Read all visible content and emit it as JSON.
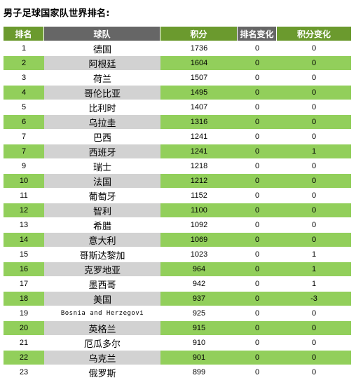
{
  "title": "男子足球国家队世界排名:",
  "columns": [
    "排名",
    "球队",
    "积分",
    "排名变化",
    "积分变化"
  ],
  "rows": [
    {
      "rank": "1",
      "team": "德国",
      "points": "1736",
      "rank_change": "0",
      "points_change": "0"
    },
    {
      "rank": "2",
      "team": "阿根廷",
      "points": "1604",
      "rank_change": "0",
      "points_change": "0"
    },
    {
      "rank": "3",
      "team": "荷兰",
      "points": "1507",
      "rank_change": "0",
      "points_change": "0"
    },
    {
      "rank": "4",
      "team": "哥伦比亚",
      "points": "1495",
      "rank_change": "0",
      "points_change": "0"
    },
    {
      "rank": "5",
      "team": "比利时",
      "points": "1407",
      "rank_change": "0",
      "points_change": "0"
    },
    {
      "rank": "6",
      "team": "乌拉圭",
      "points": "1316",
      "rank_change": "0",
      "points_change": "0"
    },
    {
      "rank": "7",
      "team": "巴西",
      "points": "1241",
      "rank_change": "0",
      "points_change": "0"
    },
    {
      "rank": "7",
      "team": "西班牙",
      "points": "1241",
      "rank_change": "0",
      "points_change": "1"
    },
    {
      "rank": "9",
      "team": "瑞士",
      "points": "1218",
      "rank_change": "0",
      "points_change": "0"
    },
    {
      "rank": "10",
      "team": "法国",
      "points": "1212",
      "rank_change": "0",
      "points_change": "0"
    },
    {
      "rank": "11",
      "team": "葡萄牙",
      "points": "1152",
      "rank_change": "0",
      "points_change": "0"
    },
    {
      "rank": "12",
      "team": "智利",
      "points": "1100",
      "rank_change": "0",
      "points_change": "0"
    },
    {
      "rank": "13",
      "team": "希腊",
      "points": "1092",
      "rank_change": "0",
      "points_change": "0"
    },
    {
      "rank": "14",
      "team": "意大利",
      "points": "1069",
      "rank_change": "0",
      "points_change": "0"
    },
    {
      "rank": "15",
      "team": "哥斯达黎加",
      "points": "1023",
      "rank_change": "0",
      "points_change": "1"
    },
    {
      "rank": "16",
      "team": "克罗地亚",
      "points": "964",
      "rank_change": "0",
      "points_change": "1"
    },
    {
      "rank": "17",
      "team": "墨西哥",
      "points": "942",
      "rank_change": "0",
      "points_change": "1"
    },
    {
      "rank": "18",
      "team": "美国",
      "points": "937",
      "rank_change": "0",
      "points_change": "-3"
    },
    {
      "rank": "19",
      "team": "Bosnia and Herzegovi",
      "points": "925",
      "rank_change": "0",
      "points_change": "0"
    },
    {
      "rank": "20",
      "team": "英格兰",
      "points": "915",
      "rank_change": "0",
      "points_change": "0"
    },
    {
      "rank": "21",
      "team": "厄瓜多尔",
      "points": "910",
      "rank_change": "0",
      "points_change": "0"
    },
    {
      "rank": "22",
      "team": "乌克兰",
      "points": "901",
      "rank_change": "0",
      "points_change": "0"
    },
    {
      "rank": "23",
      "team": "俄罗斯",
      "points": "899",
      "rank_change": "0",
      "points_change": "0"
    }
  ],
  "colors": {
    "header_green": "#6b9a2e",
    "header_gray": "#666666",
    "row_green": "#92cf5b",
    "row_gray": "#d2d2d2"
  }
}
